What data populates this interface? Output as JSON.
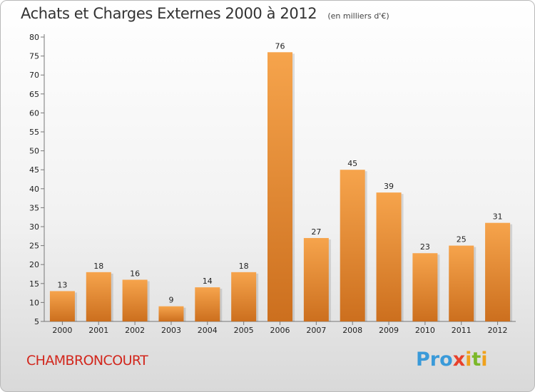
{
  "header": {
    "title": "Achats et Charges Externes 2000 à 2012",
    "subtitle": "(en milliers d'€)"
  },
  "footer": {
    "commune": "CHAMBRONCOURT",
    "brand_letters": [
      {
        "char": "P",
        "color": "#3a9ad9"
      },
      {
        "char": "r",
        "color": "#3a9ad9"
      },
      {
        "char": "o",
        "color": "#3a9ad9"
      },
      {
        "char": "x",
        "color": "#e8412b"
      },
      {
        "char": "i",
        "color": "#f0a11c"
      },
      {
        "char": "t",
        "color": "#7cb829"
      },
      {
        "char": "i",
        "color": "#f0a11c"
      }
    ]
  },
  "colors": {
    "bar_light": "#f6a44c",
    "bar_dark": "#cc6f1e",
    "commune": "#d2261c"
  },
  "chart_data": {
    "type": "bar",
    "title": "Achats et Charges Externes 2000 à 2012",
    "subtitle": "(en milliers d'€)",
    "categories": [
      "2000",
      "2001",
      "2002",
      "2003",
      "2004",
      "2005",
      "2006",
      "2007",
      "2008",
      "2009",
      "2010",
      "2011",
      "2012"
    ],
    "values": [
      13,
      18,
      16,
      9,
      14,
      18,
      76,
      27,
      45,
      39,
      23,
      25,
      31
    ],
    "ylim": [
      5,
      80
    ],
    "yticks": [
      5,
      10,
      15,
      20,
      25,
      30,
      35,
      40,
      45,
      50,
      55,
      60,
      65,
      70,
      75,
      80
    ],
    "grid": false,
    "legend": "none"
  }
}
